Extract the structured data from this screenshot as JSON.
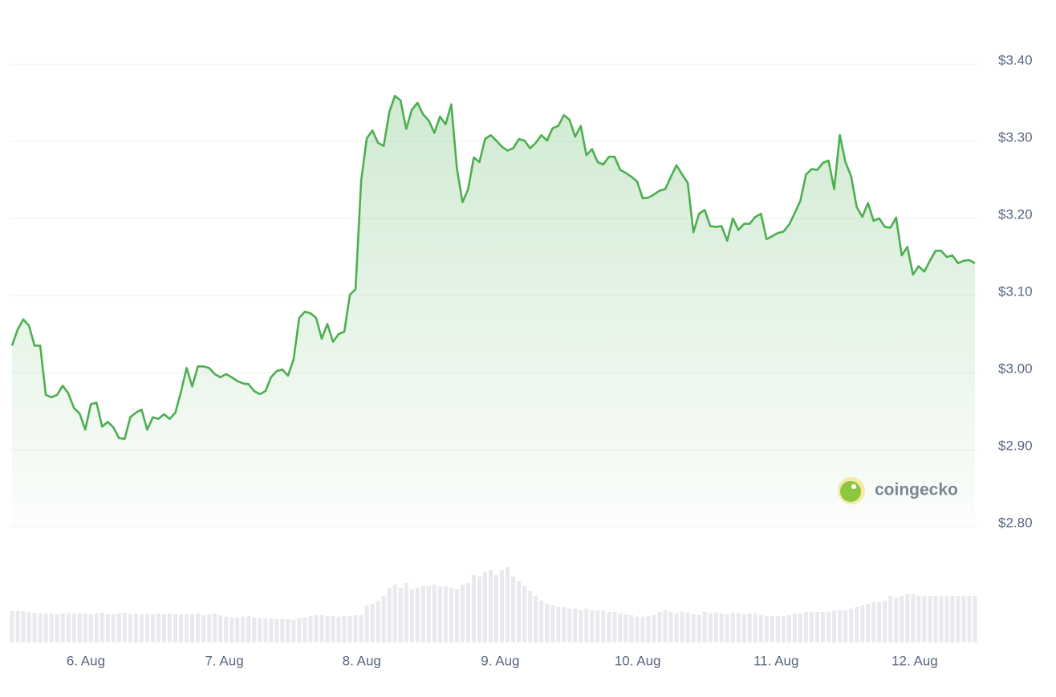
{
  "chart_data": {
    "type": "line",
    "watermark": "coingecko",
    "series": [
      {
        "color": "#4caf50",
        "values": [
          3.035,
          3.056,
          3.069,
          3.061,
          3.035,
          3.035,
          2.971,
          2.968,
          2.971,
          2.983,
          2.973,
          2.954,
          2.947,
          2.926,
          2.959,
          2.961,
          2.93,
          2.936,
          2.929,
          2.915,
          2.914,
          2.942,
          2.948,
          2.952,
          2.926,
          2.942,
          2.94,
          2.946,
          2.94,
          2.948,
          2.975,
          3.006,
          2.982,
          3.008,
          3.008,
          3.006,
          2.998,
          2.994,
          2.998,
          2.994,
          2.989,
          2.986,
          2.985,
          2.976,
          2.972,
          2.976,
          2.994,
          3.002,
          3.004,
          2.996,
          3.017,
          3.071,
          3.079,
          3.077,
          3.071,
          3.044,
          3.063,
          3.04,
          3.05,
          3.053,
          3.101,
          3.108,
          3.249,
          3.304,
          3.314,
          3.298,
          3.294,
          3.338,
          3.359,
          3.353,
          3.316,
          3.341,
          3.35,
          3.335,
          3.327,
          3.311,
          3.332,
          3.322,
          3.348,
          3.265,
          3.221,
          3.238,
          3.279,
          3.273,
          3.303,
          3.308,
          3.301,
          3.293,
          3.288,
          3.291,
          3.303,
          3.301,
          3.291,
          3.298,
          3.308,
          3.301,
          3.317,
          3.32,
          3.334,
          3.328,
          3.306,
          3.32,
          3.282,
          3.29,
          3.273,
          3.27,
          3.28,
          3.28,
          3.263,
          3.259,
          3.254,
          3.248,
          3.226,
          3.227,
          3.231,
          3.236,
          3.238,
          3.254,
          3.269,
          3.257,
          3.246,
          3.182,
          3.206,
          3.211,
          3.19,
          3.189,
          3.19,
          3.171,
          3.2,
          3.185,
          3.193,
          3.193,
          3.202,
          3.206,
          3.173,
          3.177,
          3.181,
          3.183,
          3.192,
          3.207,
          3.223,
          3.257,
          3.264,
          3.263,
          3.272,
          3.275,
          3.238,
          3.308,
          3.273,
          3.255,
          3.215,
          3.202,
          3.22,
          3.197,
          3.2,
          3.189,
          3.188,
          3.201,
          3.152,
          3.163,
          3.127,
          3.138,
          3.131,
          3.145,
          3.158,
          3.158,
          3.15,
          3.152,
          3.142,
          3.145,
          3.146,
          3.142
        ]
      }
    ],
    "volume": {
      "color": "#e8eaee",
      "ylim": [
        0,
        100
      ],
      "values": [
        39,
        39,
        39,
        38,
        37,
        36,
        36,
        36,
        35,
        36,
        36,
        36,
        36,
        36,
        35,
        36,
        37,
        35,
        35,
        36,
        37,
        35,
        36,
        35,
        36,
        35,
        36,
        35,
        36,
        35,
        35,
        35,
        35,
        36,
        34,
        35,
        36,
        34,
        32,
        31,
        31,
        32,
        33,
        31,
        30,
        30,
        30,
        29,
        29,
        29,
        28,
        30,
        31,
        33,
        34,
        34,
        33,
        33,
        32,
        33,
        33,
        34,
        34,
        46,
        48,
        52,
        58,
        68,
        72,
        68,
        74,
        66,
        68,
        70,
        70,
        72,
        70,
        70,
        68,
        66,
        72,
        74,
        84,
        82,
        88,
        90,
        84,
        90,
        94,
        82,
        76,
        70,
        64,
        58,
        52,
        48,
        46,
        44,
        44,
        42,
        42,
        40,
        42,
        40,
        40,
        40,
        38,
        38,
        36,
        35,
        34,
        32,
        32,
        33,
        34,
        38,
        40,
        38,
        36,
        38,
        37,
        35,
        34,
        38,
        36,
        37,
        36,
        35,
        37,
        36,
        35,
        36,
        36,
        34,
        33,
        33,
        33,
        33,
        34,
        36,
        36,
        38,
        38,
        38,
        38,
        38,
        40,
        40,
        40,
        42,
        44,
        46,
        48,
        50,
        50,
        52,
        58,
        56,
        58,
        60,
        60,
        58,
        58,
        58,
        58,
        58,
        58,
        58,
        58,
        58,
        58,
        58
      ]
    },
    "xlim": [
      0,
      171
    ],
    "xticks": [
      {
        "value": 13.1,
        "label": "6. Aug"
      },
      {
        "value": 37.7,
        "label": "7. Aug"
      },
      {
        "value": 62.1,
        "label": "8. Aug"
      },
      {
        "value": 86.7,
        "label": "9. Aug"
      },
      {
        "value": 111.1,
        "label": "10. Aug"
      },
      {
        "value": 135.7,
        "label": "11. Aug"
      },
      {
        "value": 160.3,
        "label": "12. Aug"
      }
    ],
    "ylim": [
      2.8,
      3.4
    ],
    "yticks": [
      {
        "value": 2.8,
        "label": "$2.80"
      },
      {
        "value": 2.9,
        "label": "$2.90"
      },
      {
        "value": 3.0,
        "label": "$3.00"
      },
      {
        "value": 3.1,
        "label": "$3.10"
      },
      {
        "value": 3.2,
        "label": "$3.20"
      },
      {
        "value": 3.3,
        "label": "$3.30"
      },
      {
        "value": 3.4,
        "label": "$3.40"
      }
    ],
    "grid": true
  }
}
